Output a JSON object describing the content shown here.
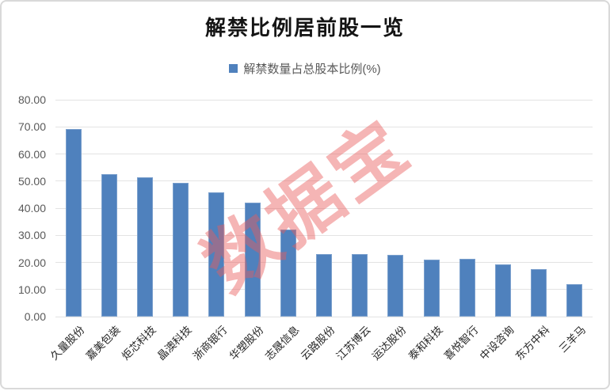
{
  "title": "解禁比例居前股一览",
  "legend": {
    "label": "解禁数量占总股本比例(%)",
    "color": "#4F81BD"
  },
  "watermark": "数据宝",
  "chart_data": {
    "type": "bar",
    "title": "解禁比例居前股一览",
    "legend_entries": [
      "解禁数量占总股本比例(%)"
    ],
    "legend_position": "top",
    "categories": [
      "久量股份",
      "嘉美包装",
      "炬芯科技",
      "晶澳科技",
      "浙商银行",
      "华塑股份",
      "志晟信息",
      "云路股份",
      "江苏博云",
      "运达股份",
      "泰和科技",
      "喜悦智行",
      "中设咨询",
      "东方中科",
      "三羊马"
    ],
    "values": [
      69.1,
      52.7,
      51.3,
      49.3,
      45.8,
      42.0,
      32.0,
      23.1,
      23.1,
      22.9,
      21.1,
      21.2,
      19.4,
      17.6,
      11.9
    ],
    "xlabel": "",
    "ylabel": "",
    "ylim": [
      0,
      80
    ],
    "ytick_step": 10,
    "ytick_labels": [
      "0.00",
      "10.00",
      "20.00",
      "30.00",
      "40.00",
      "50.00",
      "60.00",
      "70.00",
      "80.00"
    ],
    "grid": true,
    "bar_color": "#4F81BD",
    "gridline_color": "#e3e3e3"
  }
}
